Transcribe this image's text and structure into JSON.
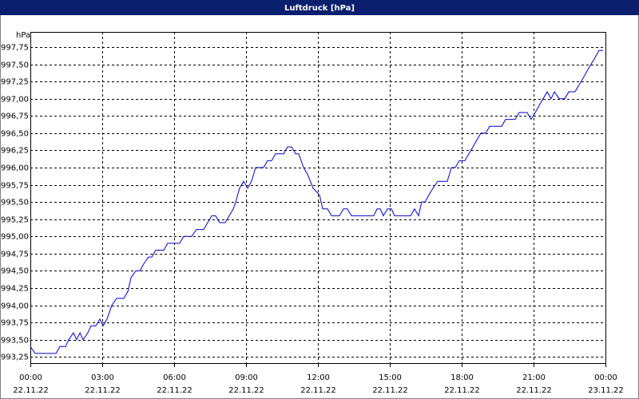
{
  "chart_data": {
    "type": "line",
    "title": "Luftdruck [hPa]",
    "y_unit_label": "hPa",
    "xlim": [
      0,
      24
    ],
    "ylim": [
      993.16,
      997.97
    ],
    "grid": true,
    "xticks": [
      {
        "value": 0,
        "label": [
          "00:00",
          "22.11.22"
        ]
      },
      {
        "value": 3,
        "label": [
          "03:00",
          "22.11.22"
        ]
      },
      {
        "value": 6,
        "label": [
          "06:00",
          "22.11.22"
        ]
      },
      {
        "value": 9,
        "label": [
          "09:00",
          "22.11.22"
        ]
      },
      {
        "value": 12,
        "label": [
          "12:00",
          "22.11.22"
        ]
      },
      {
        "value": 15,
        "label": [
          "15:00",
          "22.11.22"
        ]
      },
      {
        "value": 18,
        "label": [
          "18:00",
          "22.11.22"
        ]
      },
      {
        "value": 21,
        "label": [
          "21:00",
          "22.11.22"
        ]
      },
      {
        "value": 24,
        "label": [
          "00:00",
          "23.11.22"
        ]
      }
    ],
    "yticks": [
      {
        "value": 993.25,
        "label": "993,25"
      },
      {
        "value": 993.5,
        "label": "993,50"
      },
      {
        "value": 993.75,
        "label": "993,75"
      },
      {
        "value": 994,
        "label": "994,00"
      },
      {
        "value": 994.25,
        "label": "994,25"
      },
      {
        "value": 994.5,
        "label": "994,50"
      },
      {
        "value": 994.75,
        "label": "994,75"
      },
      {
        "value": 995,
        "label": "995,00"
      },
      {
        "value": 995.25,
        "label": "995,25"
      },
      {
        "value": 995.5,
        "label": "995,50"
      },
      {
        "value": 995.75,
        "label": "995,75"
      },
      {
        "value": 996,
        "label": "996,00"
      },
      {
        "value": 996.25,
        "label": "996,25"
      },
      {
        "value": 996.5,
        "label": "996,50"
      },
      {
        "value": 996.75,
        "label": "996,75"
      },
      {
        "value": 997,
        "label": "997,00"
      },
      {
        "value": 997.25,
        "label": "997,25"
      },
      {
        "value": 997.5,
        "label": "997,50"
      },
      {
        "value": 997.75,
        "label": "997,75"
      }
    ],
    "x": [
      0,
      0.2,
      1.07,
      1.23,
      1.47,
      1.6,
      1.8,
      1.93,
      2.07,
      2.2,
      2.4,
      2.53,
      2.73,
      2.9,
      3.03,
      3.2,
      3.4,
      3.6,
      3.9,
      4.07,
      4.2,
      4.4,
      4.57,
      4.73,
      4.93,
      5.07,
      5.23,
      5.57,
      5.73,
      6.23,
      6.4,
      6.73,
      6.93,
      7.23,
      7.4,
      7.57,
      7.73,
      7.9,
      8.13,
      8.3,
      8.47,
      8.57,
      8.73,
      8.9,
      9.07,
      9.23,
      9.4,
      9.73,
      9.9,
      10.07,
      10.23,
      10.57,
      10.73,
      10.9,
      11.07,
      11.2,
      11.4,
      11.57,
      11.8,
      12.07,
      12.2,
      12.4,
      12.57,
      12.9,
      13.07,
      13.23,
      13.4,
      14.33,
      14.47,
      14.6,
      14.73,
      14.9,
      15.07,
      15.2,
      15.87,
      16.03,
      16.2,
      16.33,
      16.47,
      16.63,
      16.8,
      17.0,
      17.4,
      17.57,
      17.73,
      17.9,
      18.13,
      18.3,
      18.47,
      18.63,
      18.8,
      19.0,
      19.17,
      19.67,
      19.83,
      20.23,
      20.4,
      20.73,
      20.9,
      21.07,
      21.23,
      21.4,
      21.57,
      21.73,
      21.87,
      22.07,
      22.3,
      22.47,
      22.73,
      22.9,
      23.07,
      23.23,
      23.4,
      23.57,
      23.73,
      23.9
    ],
    "series": [
      {
        "color": "#0000cc",
        "values": [
          993.4,
          993.3,
          993.3,
          993.4,
          993.4,
          993.5,
          993.6,
          993.5,
          993.6,
          993.5,
          993.6,
          993.7,
          993.7,
          993.8,
          993.7,
          993.8,
          994.0,
          994.1,
          994.1,
          994.2,
          994.4,
          994.5,
          994.5,
          994.6,
          994.7,
          994.7,
          994.8,
          994.8,
          994.9,
          994.9,
          995.0,
          995.0,
          995.1,
          995.1,
          995.2,
          995.3,
          995.3,
          995.2,
          995.2,
          995.3,
          995.4,
          995.5,
          995.7,
          995.8,
          995.7,
          995.8,
          996.0,
          996.0,
          996.1,
          996.1,
          996.2,
          996.2,
          996.3,
          996.3,
          996.2,
          996.2,
          996.0,
          995.9,
          995.7,
          995.6,
          995.4,
          995.4,
          995.3,
          995.3,
          995.4,
          995.4,
          995.3,
          995.3,
          995.4,
          995.4,
          995.3,
          995.4,
          995.4,
          995.3,
          995.3,
          995.4,
          995.3,
          995.5,
          995.5,
          995.6,
          995.7,
          995.8,
          995.8,
          996.0,
          996.0,
          996.1,
          996.1,
          996.2,
          996.3,
          996.4,
          996.5,
          996.5,
          996.6,
          996.6,
          996.7,
          996.7,
          996.8,
          996.8,
          996.7,
          996.8,
          996.9,
          997.0,
          997.1,
          997.0,
          997.1,
          997.0,
          997.0,
          997.1,
          997.1,
          997.2,
          997.3,
          997.4,
          997.5,
          997.6,
          997.7,
          997.7
        ]
      }
    ]
  }
}
